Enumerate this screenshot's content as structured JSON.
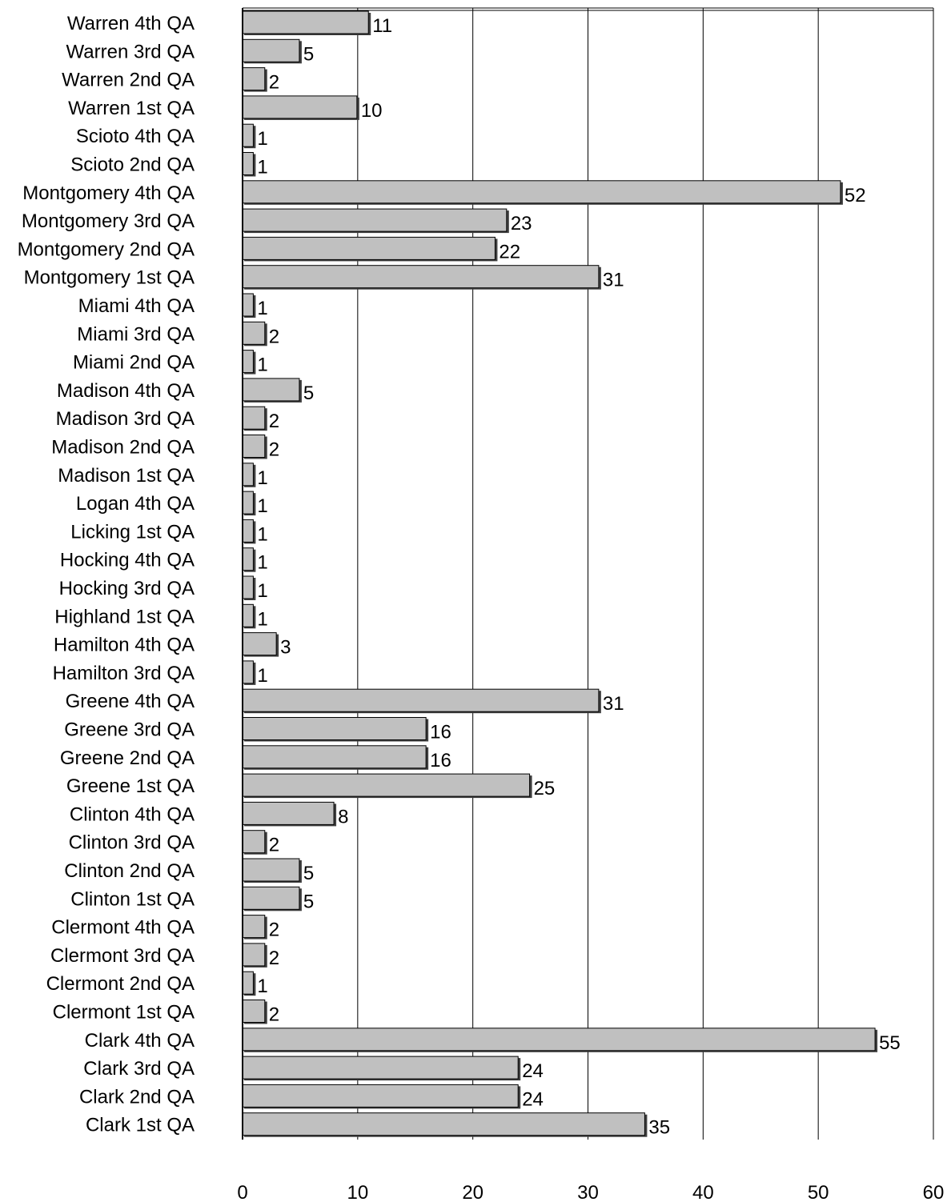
{
  "chart_data": {
    "type": "bar",
    "orientation": "horizontal",
    "title": "",
    "xlabel": "",
    "ylabel": "",
    "xlim": [
      0,
      60
    ],
    "x_ticks": [
      0,
      10,
      20,
      30,
      40,
      50,
      60
    ],
    "x_tick_labels": [
      "0",
      "10",
      "20",
      "30",
      "40",
      "50",
      "60"
    ],
    "grid": "vertical",
    "legend": "none",
    "bar_color": "#c0c0c0",
    "bar_outline_color": "#000000",
    "categories": [
      "Warren 4th QA",
      "Warren 3rd QA",
      "Warren 2nd QA",
      "Warren 1st QA",
      "Scioto 4th QA",
      "Scioto 2nd QA",
      "Montgomery 4th QA",
      "Montgomery 3rd QA",
      "Montgomery 2nd QA",
      "Montgomery 1st QA",
      "Miami 4th QA",
      "Miami 3rd QA",
      "Miami 2nd QA",
      "Madison 4th QA",
      "Madison 3rd QA",
      "Madison 2nd QA",
      "Madison 1st QA",
      "Logan 4th QA",
      "Licking 1st QA",
      "Hocking 4th QA",
      "Hocking 3rd QA",
      "Highland 1st QA",
      "Hamilton 4th QA",
      "Hamilton 3rd QA",
      "Greene 4th QA",
      "Greene 3rd QA",
      "Greene 2nd QA",
      "Greene 1st QA",
      "Clinton 4th QA",
      "Clinton 3rd QA",
      "Clinton 2nd QA",
      "Clinton 1st QA",
      "Clermont 4th QA",
      "Clermont 3rd QA",
      "Clermont 2nd QA",
      "Clermont 1st QA",
      "Clark 4th QA",
      "Clark 3rd QA",
      "Clark 2nd QA",
      "Clark 1st QA"
    ],
    "values": [
      11,
      5,
      2,
      10,
      1,
      1,
      52,
      23,
      22,
      31,
      1,
      2,
      1,
      5,
      2,
      2,
      1,
      1,
      1,
      1,
      1,
      1,
      3,
      1,
      31,
      16,
      16,
      25,
      8,
      2,
      5,
      5,
      2,
      2,
      1,
      2,
      55,
      24,
      24,
      35
    ],
    "value_labels": [
      "11",
      "5",
      "2",
      "10",
      "1",
      "1",
      "52",
      "23",
      "22",
      "31",
      "1",
      "2",
      "1",
      "5",
      "2",
      "2",
      "1",
      "1",
      "1",
      "1",
      "1",
      "1",
      "3",
      "1",
      "31",
      "16",
      "16",
      "25",
      "8",
      "2",
      "5",
      "5",
      "2",
      "2",
      "1",
      "2",
      "55",
      "24",
      "24",
      "35"
    ]
  }
}
